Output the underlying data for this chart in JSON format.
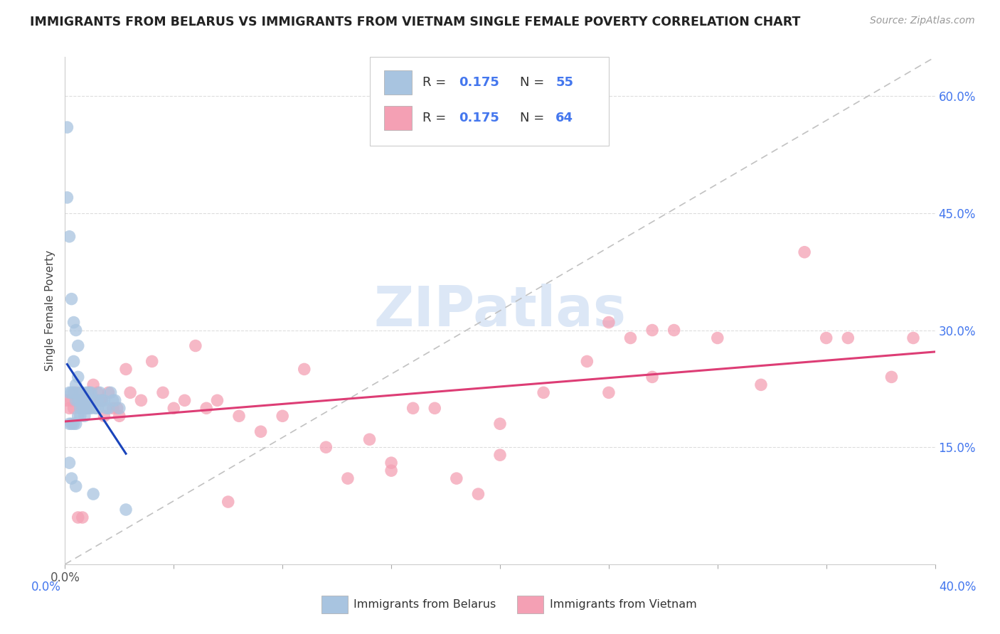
{
  "title": "IMMIGRANTS FROM BELARUS VS IMMIGRANTS FROM VIETNAM SINGLE FEMALE POVERTY CORRELATION CHART",
  "source": "Source: ZipAtlas.com",
  "ylabel": "Single Female Poverty",
  "xlim": [
    0.0,
    0.4
  ],
  "ylim": [
    0.0,
    0.65
  ],
  "x_ticks": [
    0.0,
    0.05,
    0.1,
    0.15,
    0.2,
    0.25,
    0.3,
    0.35,
    0.4
  ],
  "y_ticks_right": [
    0.15,
    0.3,
    0.45,
    0.6
  ],
  "y_tick_labels_right": [
    "15.0%",
    "30.0%",
    "45.0%",
    "60.0%"
  ],
  "belarus_color": "#a8c4e0",
  "vietnam_color": "#f4a0b4",
  "belarus_line_color": "#1a44bb",
  "vietnam_line_color": "#dd3d75",
  "diagonal_color": "#bbbbbb",
  "legend_belarus_label": "Immigrants from Belarus",
  "legend_vietnam_label": "Immigrants from Vietnam",
  "R_belarus": "0.175",
  "N_belarus": "55",
  "R_vietnam": "0.175",
  "N_vietnam": "64",
  "blue_text_color": "#4477ee",
  "black_text_color": "#333333",
  "watermark": "ZIPatlas",
  "watermark_color": "#c5d8f0",
  "background_color": "#ffffff",
  "grid_color": "#dddddd",
  "belarus_x": [
    0.001,
    0.001,
    0.002,
    0.002,
    0.002,
    0.003,
    0.003,
    0.003,
    0.004,
    0.004,
    0.004,
    0.004,
    0.005,
    0.005,
    0.005,
    0.005,
    0.006,
    0.006,
    0.006,
    0.006,
    0.007,
    0.007,
    0.007,
    0.007,
    0.008,
    0.008,
    0.008,
    0.009,
    0.009,
    0.009,
    0.01,
    0.01,
    0.01,
    0.011,
    0.011,
    0.012,
    0.012,
    0.013,
    0.014,
    0.015,
    0.015,
    0.016,
    0.017,
    0.018,
    0.019,
    0.02,
    0.021,
    0.022,
    0.023,
    0.025,
    0.002,
    0.003,
    0.005,
    0.013,
    0.028
  ],
  "belarus_y": [
    0.56,
    0.47,
    0.42,
    0.22,
    0.18,
    0.34,
    0.22,
    0.18,
    0.31,
    0.26,
    0.22,
    0.18,
    0.3,
    0.23,
    0.21,
    0.18,
    0.28,
    0.24,
    0.21,
    0.19,
    0.22,
    0.21,
    0.2,
    0.19,
    0.22,
    0.21,
    0.2,
    0.21,
    0.2,
    0.19,
    0.22,
    0.21,
    0.2,
    0.22,
    0.2,
    0.22,
    0.2,
    0.21,
    0.2,
    0.21,
    0.2,
    0.22,
    0.21,
    0.21,
    0.2,
    0.2,
    0.22,
    0.21,
    0.21,
    0.2,
    0.13,
    0.11,
    0.1,
    0.09,
    0.07
  ],
  "vietnam_x": [
    0.001,
    0.002,
    0.003,
    0.004,
    0.005,
    0.006,
    0.007,
    0.008,
    0.009,
    0.01,
    0.011,
    0.012,
    0.013,
    0.015,
    0.016,
    0.017,
    0.018,
    0.02,
    0.022,
    0.024,
    0.025,
    0.028,
    0.03,
    0.035,
    0.04,
    0.045,
    0.05,
    0.055,
    0.06,
    0.065,
    0.07,
    0.075,
    0.08,
    0.09,
    0.1,
    0.11,
    0.12,
    0.13,
    0.14,
    0.15,
    0.16,
    0.17,
    0.18,
    0.19,
    0.2,
    0.22,
    0.24,
    0.25,
    0.26,
    0.27,
    0.28,
    0.3,
    0.32,
    0.34,
    0.35,
    0.36,
    0.38,
    0.39,
    0.006,
    0.008,
    0.2,
    0.15,
    0.25,
    0.27
  ],
  "vietnam_y": [
    0.21,
    0.2,
    0.21,
    0.2,
    0.22,
    0.21,
    0.2,
    0.21,
    0.2,
    0.2,
    0.22,
    0.21,
    0.23,
    0.22,
    0.21,
    0.21,
    0.19,
    0.22,
    0.2,
    0.2,
    0.19,
    0.25,
    0.22,
    0.21,
    0.26,
    0.22,
    0.2,
    0.21,
    0.28,
    0.2,
    0.21,
    0.08,
    0.19,
    0.17,
    0.19,
    0.25,
    0.15,
    0.11,
    0.16,
    0.12,
    0.2,
    0.2,
    0.11,
    0.09,
    0.18,
    0.22,
    0.26,
    0.22,
    0.29,
    0.24,
    0.3,
    0.29,
    0.23,
    0.4,
    0.29,
    0.29,
    0.24,
    0.29,
    0.06,
    0.06,
    0.14,
    0.13,
    0.31,
    0.3
  ]
}
